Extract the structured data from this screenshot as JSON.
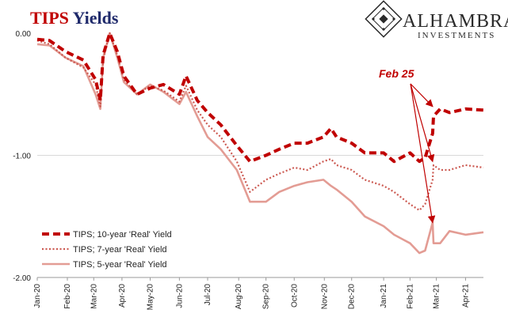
{
  "title": {
    "part1": "TIPS",
    "part2": " Yields"
  },
  "logo": {
    "name": "ALHAMBRA",
    "sub": "INVESTMENTS"
  },
  "colors": {
    "ten_year": "#c00000",
    "seven_year": "#cc5a52",
    "five_year": "#e39c94",
    "title_red": "#c00000",
    "title_navy": "#1f2a6b"
  },
  "chart_data": {
    "type": "line",
    "title": "TIPS Yields",
    "ylim": [
      -2.0,
      0.0
    ],
    "yticks": [
      0.0,
      -1.0,
      -2.0
    ],
    "ytick_labels": [
      "0.00",
      "-1.00",
      "-2.00"
    ],
    "grid": "horizontal at -1.00",
    "xlim": [
      "2020-01-02",
      "2021-04-20"
    ],
    "xticks": [
      "2020-01-02",
      "2020-02-03",
      "2020-03-02",
      "2020-04-01",
      "2020-05-01",
      "2020-06-01",
      "2020-07-01",
      "2020-08-03",
      "2020-09-01",
      "2020-10-01",
      "2020-11-02",
      "2020-12-01",
      "2021-01-04",
      "2021-02-01",
      "2021-03-01",
      "2021-04-01"
    ],
    "xtick_labels": [
      "Jan-20",
      "Feb-20",
      "Mar-20",
      "Apr-20",
      "May-20",
      "Jun-20",
      "Jul-20",
      "Aug-20",
      "Sep-20",
      "Oct-20",
      "Nov-20",
      "Dec-20",
      "Jan-21",
      "Feb-21",
      "Mar-21",
      "Apr-21"
    ],
    "legend_position": "bottom-left",
    "series": [
      {
        "name": "TIPS; 10-year 'Real' Yield",
        "style": "dashed",
        "points": [
          [
            "2020-01-02",
            -0.05
          ],
          [
            "2020-01-15",
            -0.06
          ],
          [
            "2020-02-01",
            -0.15
          ],
          [
            "2020-02-20",
            -0.22
          ],
          [
            "2020-03-04",
            -0.38
          ],
          [
            "2020-03-09",
            -0.55
          ],
          [
            "2020-03-12",
            -0.18
          ],
          [
            "2020-03-19",
            0.0
          ],
          [
            "2020-03-27",
            -0.15
          ],
          [
            "2020-04-03",
            -0.35
          ],
          [
            "2020-04-17",
            -0.5
          ],
          [
            "2020-05-01",
            -0.45
          ],
          [
            "2020-05-15",
            -0.42
          ],
          [
            "2020-06-01",
            -0.5
          ],
          [
            "2020-06-08",
            -0.35
          ],
          [
            "2020-06-20",
            -0.55
          ],
          [
            "2020-07-01",
            -0.65
          ],
          [
            "2020-07-15",
            -0.75
          ],
          [
            "2020-08-01",
            -0.92
          ],
          [
            "2020-08-15",
            -1.05
          ],
          [
            "2020-09-01",
            -1.0
          ],
          [
            "2020-09-15",
            -0.95
          ],
          [
            "2020-10-01",
            -0.9
          ],
          [
            "2020-10-15",
            -0.9
          ],
          [
            "2020-11-01",
            -0.85
          ],
          [
            "2020-11-09",
            -0.78
          ],
          [
            "2020-11-15",
            -0.85
          ],
          [
            "2020-12-01",
            -0.9
          ],
          [
            "2020-12-15",
            -0.98
          ],
          [
            "2021-01-04",
            -0.98
          ],
          [
            "2021-01-15",
            -1.05
          ],
          [
            "2021-02-01",
            -0.98
          ],
          [
            "2021-02-11",
            -1.05
          ],
          [
            "2021-02-17",
            -1.02
          ],
          [
            "2021-02-25",
            -0.82
          ],
          [
            "2021-02-26",
            -0.68
          ],
          [
            "2021-03-05",
            -0.62
          ],
          [
            "2021-03-15",
            -0.65
          ],
          [
            "2021-04-01",
            -0.62
          ],
          [
            "2021-04-20",
            -0.63
          ]
        ]
      },
      {
        "name": "TIPS; 7-year 'Real' Yield",
        "style": "dotted",
        "points": [
          [
            "2020-01-02",
            -0.06
          ],
          [
            "2020-01-15",
            -0.09
          ],
          [
            "2020-02-01",
            -0.2
          ],
          [
            "2020-02-20",
            -0.28
          ],
          [
            "2020-03-04",
            -0.42
          ],
          [
            "2020-03-09",
            -0.6
          ],
          [
            "2020-03-12",
            -0.22
          ],
          [
            "2020-03-19",
            0.0
          ],
          [
            "2020-03-27",
            -0.18
          ],
          [
            "2020-04-03",
            -0.38
          ],
          [
            "2020-04-17",
            -0.5
          ],
          [
            "2020-05-01",
            -0.43
          ],
          [
            "2020-05-15",
            -0.47
          ],
          [
            "2020-06-01",
            -0.56
          ],
          [
            "2020-06-08",
            -0.43
          ],
          [
            "2020-06-20",
            -0.63
          ],
          [
            "2020-07-01",
            -0.75
          ],
          [
            "2020-07-15",
            -0.85
          ],
          [
            "2020-08-01",
            -1.05
          ],
          [
            "2020-08-15",
            -1.3
          ],
          [
            "2020-09-01",
            -1.2
          ],
          [
            "2020-09-15",
            -1.15
          ],
          [
            "2020-10-01",
            -1.1
          ],
          [
            "2020-10-15",
            -1.12
          ],
          [
            "2020-11-01",
            -1.05
          ],
          [
            "2020-11-09",
            -1.03
          ],
          [
            "2020-11-15",
            -1.08
          ],
          [
            "2020-12-01",
            -1.12
          ],
          [
            "2020-12-15",
            -1.2
          ],
          [
            "2021-01-04",
            -1.25
          ],
          [
            "2021-01-15",
            -1.3
          ],
          [
            "2021-02-01",
            -1.4
          ],
          [
            "2021-02-11",
            -1.45
          ],
          [
            "2021-02-17",
            -1.4
          ],
          [
            "2021-02-25",
            -1.2
          ],
          [
            "2021-02-26",
            -1.08
          ],
          [
            "2021-03-05",
            -1.12
          ],
          [
            "2021-03-15",
            -1.12
          ],
          [
            "2021-04-01",
            -1.08
          ],
          [
            "2021-04-20",
            -1.1
          ]
        ]
      },
      {
        "name": "TIPS; 5-year 'Real' Yield",
        "style": "solid",
        "points": [
          [
            "2020-01-02",
            -0.09
          ],
          [
            "2020-01-15",
            -0.1
          ],
          [
            "2020-02-01",
            -0.2
          ],
          [
            "2020-02-20",
            -0.27
          ],
          [
            "2020-03-04",
            -0.5
          ],
          [
            "2020-03-09",
            -0.62
          ],
          [
            "2020-03-12",
            -0.2
          ],
          [
            "2020-03-19",
            0.0
          ],
          [
            "2020-03-27",
            -0.2
          ],
          [
            "2020-04-03",
            -0.4
          ],
          [
            "2020-04-17",
            -0.5
          ],
          [
            "2020-05-01",
            -0.42
          ],
          [
            "2020-05-15",
            -0.48
          ],
          [
            "2020-06-01",
            -0.58
          ],
          [
            "2020-06-08",
            -0.48
          ],
          [
            "2020-06-20",
            -0.68
          ],
          [
            "2020-07-01",
            -0.85
          ],
          [
            "2020-07-15",
            -0.95
          ],
          [
            "2020-08-01",
            -1.12
          ],
          [
            "2020-08-15",
            -1.38
          ],
          [
            "2020-09-01",
            -1.38
          ],
          [
            "2020-09-15",
            -1.3
          ],
          [
            "2020-10-01",
            -1.25
          ],
          [
            "2020-10-15",
            -1.22
          ],
          [
            "2020-11-01",
            -1.2
          ],
          [
            "2020-11-09",
            -1.25
          ],
          [
            "2020-11-15",
            -1.28
          ],
          [
            "2020-12-01",
            -1.38
          ],
          [
            "2020-12-15",
            -1.5
          ],
          [
            "2021-01-04",
            -1.58
          ],
          [
            "2021-01-15",
            -1.65
          ],
          [
            "2021-02-01",
            -1.72
          ],
          [
            "2021-02-11",
            -1.8
          ],
          [
            "2021-02-17",
            -1.78
          ],
          [
            "2021-02-25",
            -1.55
          ],
          [
            "2021-02-26",
            -1.72
          ],
          [
            "2021-03-05",
            -1.72
          ],
          [
            "2021-03-15",
            -1.62
          ],
          [
            "2021-04-01",
            -1.65
          ],
          [
            "2021-04-20",
            -1.63
          ]
        ]
      }
    ],
    "annotations": [
      {
        "text": "Feb 25",
        "color": "#c00000",
        "arrow_targets": [
          [
            "2021-02-25",
            -0.6
          ],
          [
            "2021-02-25",
            -1.05
          ],
          [
            "2021-02-25",
            -1.55
          ]
        ]
      }
    ]
  }
}
